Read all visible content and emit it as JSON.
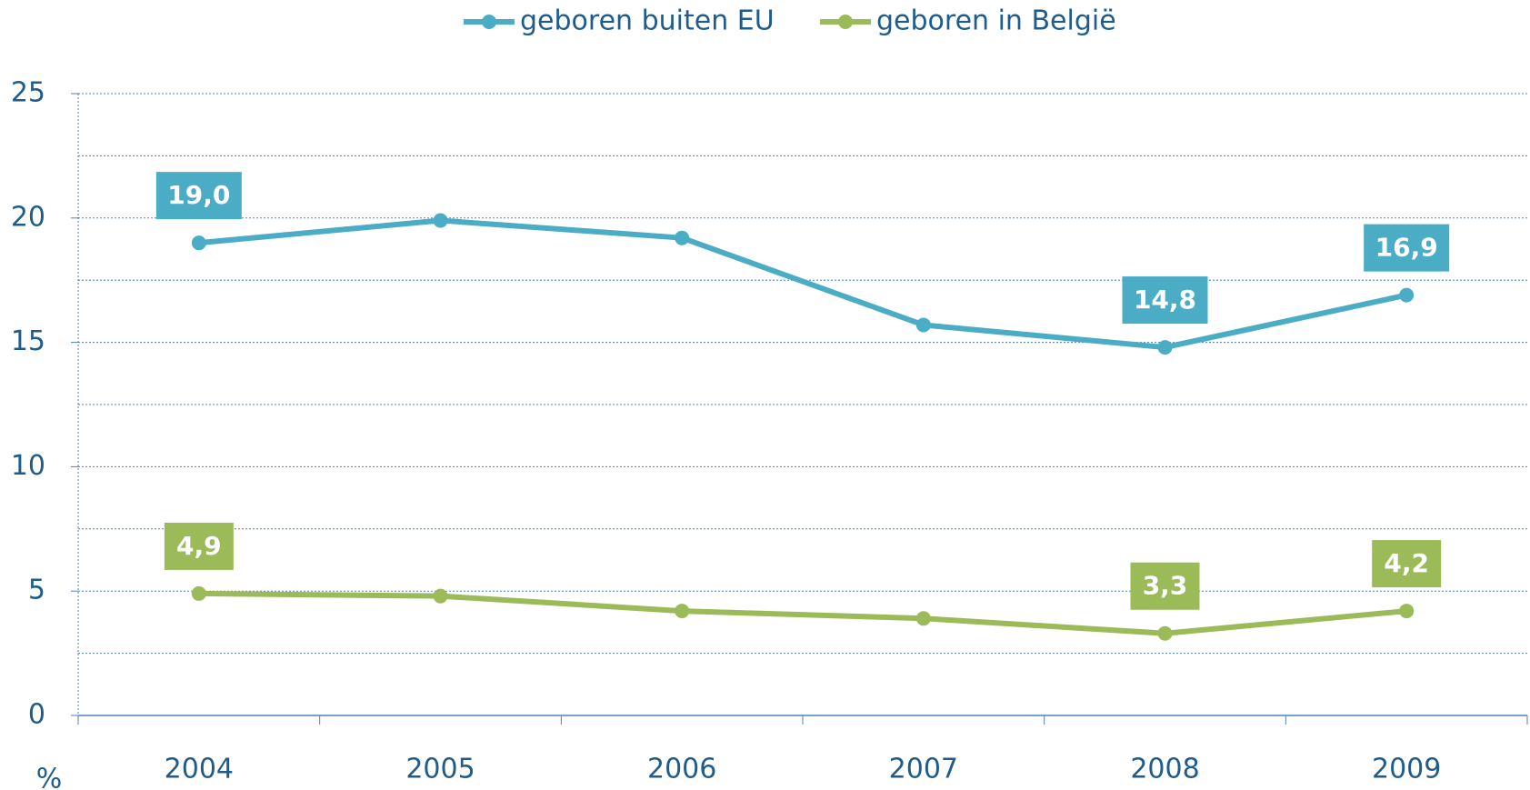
{
  "chart_data": {
    "type": "line",
    "categories": [
      "2004",
      "2005",
      "2006",
      "2007",
      "2008",
      "2009"
    ],
    "series": [
      {
        "name": "geboren buiten EU",
        "color": "#4bacc6",
        "values": [
          19.0,
          19.9,
          19.2,
          15.7,
          14.8,
          16.9
        ],
        "value_labels": [
          "19,0",
          null,
          null,
          null,
          "14,8",
          "16,9"
        ]
      },
      {
        "name": "geboren in België",
        "color": "#9bbb59",
        "values": [
          4.9,
          4.8,
          4.2,
          3.9,
          3.3,
          4.2
        ],
        "value_labels": [
          "4,9",
          null,
          null,
          null,
          "3,3",
          "4,2"
        ]
      }
    ],
    "y_label": "%",
    "ylim": [
      0,
      25
    ],
    "yticks": [
      0,
      5,
      10,
      15,
      20,
      25
    ],
    "grid": true,
    "minor_grid": true,
    "legend": "top"
  }
}
